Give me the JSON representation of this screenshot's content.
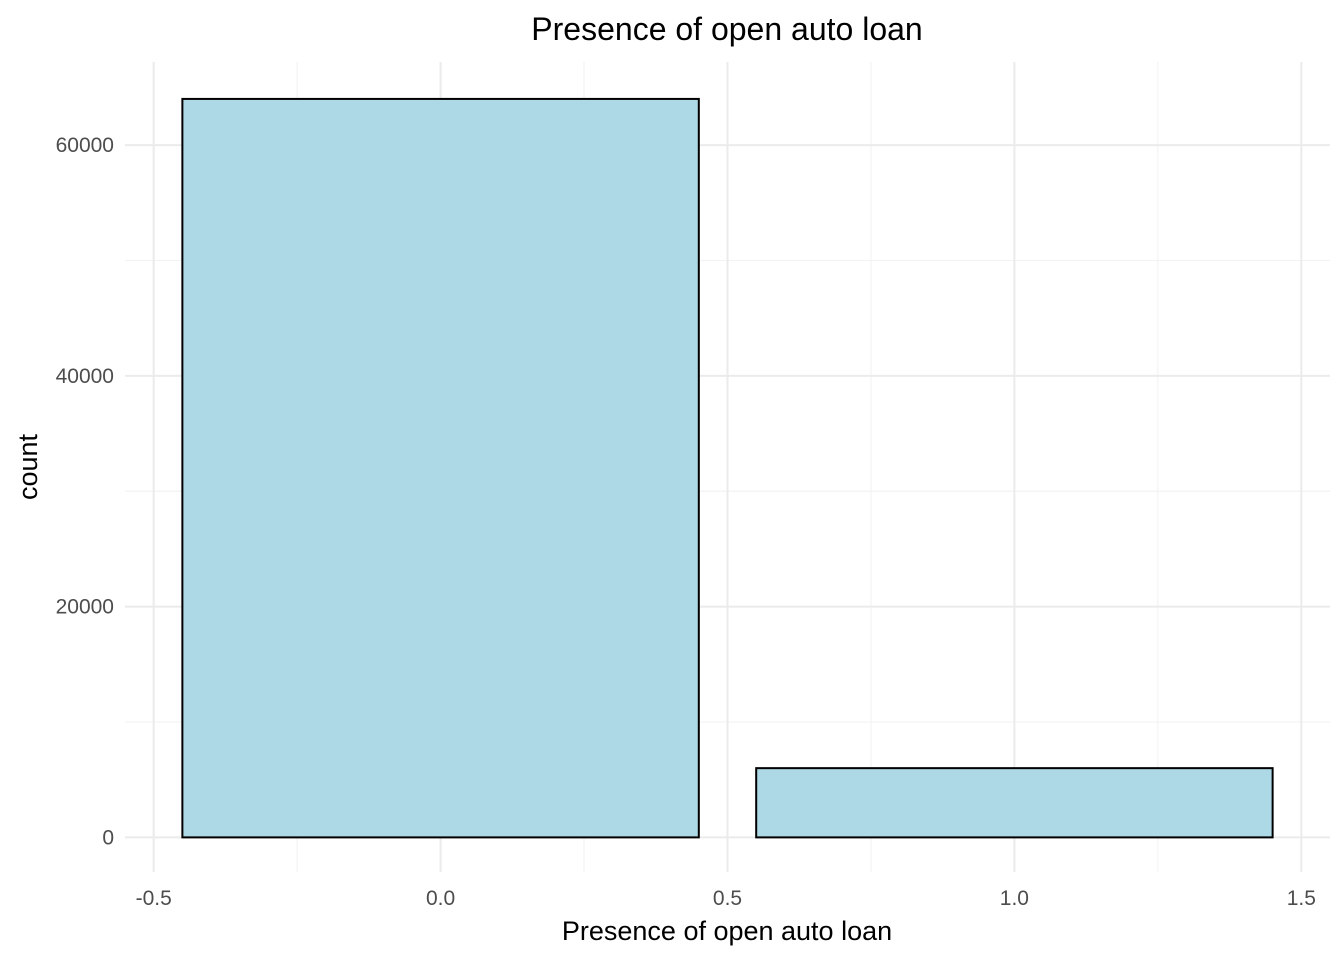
{
  "chart_data": {
    "type": "bar",
    "title": "Presence of open auto loan",
    "xlabel": "Presence of open auto loan",
    "ylabel": "count",
    "x": [
      0,
      1
    ],
    "values": [
      64000,
      6000
    ],
    "bar_width": 0.9,
    "xlim": [
      -0.55,
      1.55
    ],
    "ylim": [
      -3000,
      67200
    ],
    "x_ticks": [
      -0.5,
      0.0,
      0.5,
      1.0,
      1.5
    ],
    "x_tick_labels": [
      "-0.5",
      "0.0",
      "0.5",
      "1.0",
      "1.5"
    ],
    "y_ticks": [
      0,
      20000,
      40000,
      60000
    ],
    "y_tick_labels": [
      "0",
      "20000",
      "40000",
      "60000"
    ],
    "x_minor_ticks": [
      -0.25,
      0.25,
      0.75,
      1.25
    ],
    "y_minor_ticks": [
      10000,
      30000,
      50000
    ],
    "grid": true,
    "bar_color": "#add8e6",
    "bar_outline": "#000000"
  }
}
